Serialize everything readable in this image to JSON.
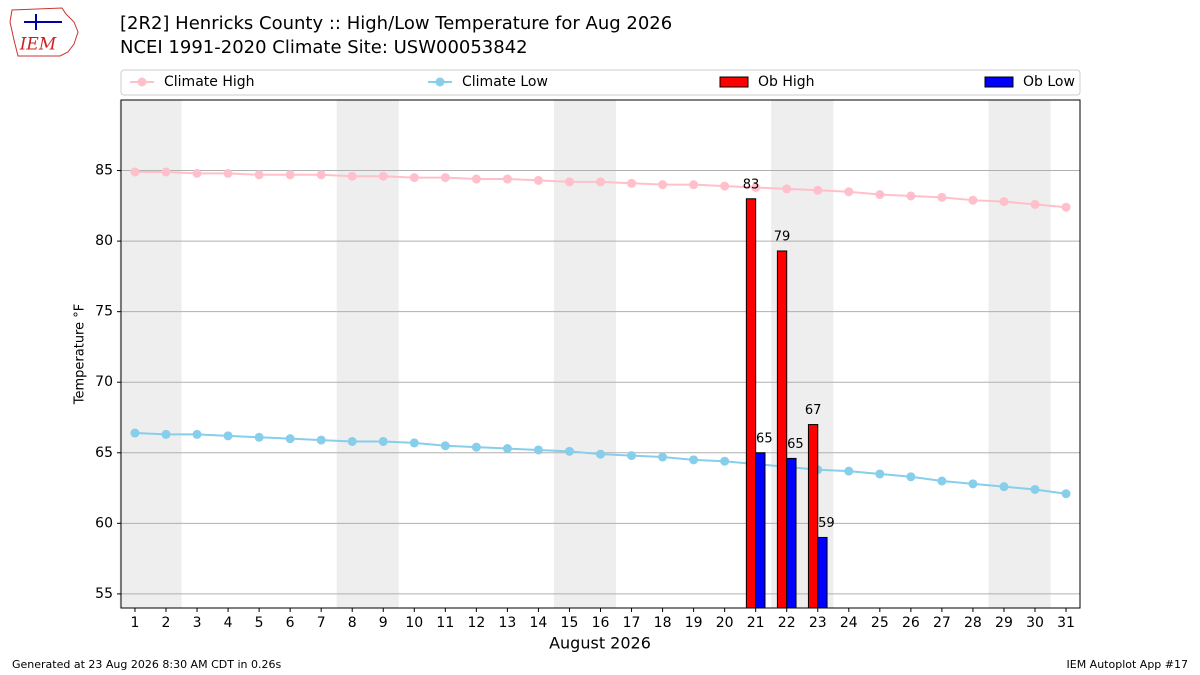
{
  "chart_data": {
    "type": "bar_line",
    "title": "[2R2] Henricks County :: High/Low Temperature for Aug 2026",
    "subtitle": "NCEI 1991-2020 Climate Site: USW00053842",
    "x_label": "August 2026",
    "y_label": "Temperature °F",
    "footer_left": "Generated at 23 Aug 2026 8:30 AM CDT in 0.26s",
    "footer_right": "IEM Autoplot App #17",
    "logo": "IEM",
    "x": [
      1,
      2,
      3,
      4,
      5,
      6,
      7,
      8,
      9,
      10,
      11,
      12,
      13,
      14,
      15,
      16,
      17,
      18,
      19,
      20,
      21,
      22,
      23,
      24,
      25,
      26,
      27,
      28,
      29,
      30,
      31
    ],
    "xlim": [
      0.55,
      31.45
    ],
    "xticks": [
      1,
      2,
      3,
      4,
      5,
      6,
      7,
      8,
      9,
      10,
      11,
      12,
      13,
      14,
      15,
      16,
      17,
      18,
      19,
      20,
      21,
      22,
      23,
      24,
      25,
      26,
      27,
      28,
      29,
      30,
      31
    ],
    "ylim": [
      54,
      90
    ],
    "yticks": [
      55,
      60,
      65,
      70,
      75,
      80,
      85
    ],
    "grid": true,
    "shaded_spans": [
      [
        0.5,
        2.5
      ],
      [
        7.5,
        9.5
      ],
      [
        14.5,
        16.5
      ],
      [
        21.5,
        23.5
      ],
      [
        28.5,
        30.5
      ]
    ],
    "series": [
      {
        "name": "Climate High",
        "type": "line",
        "color": "#ffc0cb",
        "values": [
          84.9,
          84.9,
          84.8,
          84.8,
          84.7,
          84.7,
          84.7,
          84.6,
          84.6,
          84.5,
          84.5,
          84.4,
          84.4,
          84.3,
          84.2,
          84.2,
          84.1,
          84.0,
          84.0,
          83.9,
          83.8,
          83.7,
          83.6,
          83.5,
          83.3,
          83.2,
          83.1,
          82.9,
          82.8,
          82.6,
          82.4
        ]
      },
      {
        "name": "Climate Low",
        "type": "line",
        "color": "#87ceeb",
        "values": [
          66.4,
          66.3,
          66.3,
          66.2,
          66.1,
          66.0,
          65.9,
          65.8,
          65.8,
          65.7,
          65.5,
          65.4,
          65.3,
          65.2,
          65.1,
          64.9,
          64.8,
          64.7,
          64.5,
          64.4,
          64.2,
          64.0,
          63.8,
          63.7,
          63.5,
          63.3,
          63.0,
          62.8,
          62.6,
          62.4,
          62.1
        ]
      },
      {
        "name": "Ob High",
        "type": "bar",
        "color": "#ff0000",
        "values": [
          null,
          null,
          null,
          null,
          null,
          null,
          null,
          null,
          null,
          null,
          null,
          null,
          null,
          null,
          null,
          null,
          null,
          null,
          null,
          null,
          83,
          79.3,
          67,
          null,
          null,
          null,
          null,
          null,
          null,
          null,
          null
        ],
        "value_labels": [
          null,
          null,
          null,
          null,
          null,
          null,
          null,
          null,
          null,
          null,
          null,
          null,
          null,
          null,
          null,
          null,
          null,
          null,
          null,
          null,
          "83",
          "79",
          "67",
          null,
          null,
          null,
          null,
          null,
          null,
          null,
          null
        ]
      },
      {
        "name": "Ob Low",
        "type": "bar",
        "color": "#0000ff",
        "values": [
          null,
          null,
          null,
          null,
          null,
          null,
          null,
          null,
          null,
          null,
          null,
          null,
          null,
          null,
          null,
          null,
          null,
          null,
          null,
          null,
          65,
          64.6,
          59,
          null,
          null,
          null,
          null,
          null,
          null,
          null,
          null
        ],
        "value_labels": [
          null,
          null,
          null,
          null,
          null,
          null,
          null,
          null,
          null,
          null,
          null,
          null,
          null,
          null,
          null,
          null,
          null,
          null,
          null,
          null,
          "65",
          "65",
          "59",
          null,
          null,
          null,
          null,
          null,
          null,
          null,
          null
        ]
      }
    ]
  }
}
